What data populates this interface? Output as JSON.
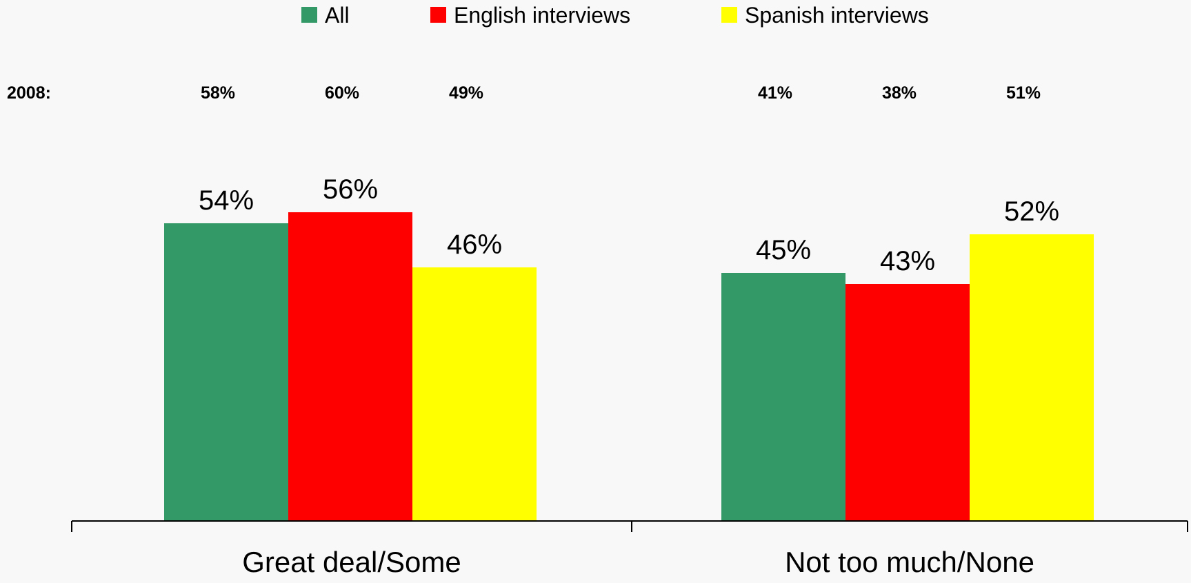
{
  "chart_data": {
    "type": "bar",
    "categories": [
      "Great deal/Some",
      "Not too much/None"
    ],
    "series": [
      {
        "name": "All",
        "values": [
          54,
          45
        ],
        "color": "#339966",
        "comparison_values": [
          58,
          41
        ]
      },
      {
        "name": "English interviews",
        "values": [
          56,
          43
        ],
        "color": "#ff0000",
        "comparison_values": [
          60,
          38
        ]
      },
      {
        "name": "Spanish interviews",
        "values": [
          46,
          52
        ],
        "color": "#ffff00",
        "comparison_values": [
          49,
          51
        ]
      }
    ],
    "value_suffix": "%",
    "comparison_row_label": "2008:",
    "ylim": [
      0,
      100
    ],
    "legend_placement": "top-center",
    "grid": false,
    "title": "",
    "xlabel": "",
    "ylabel": ""
  }
}
